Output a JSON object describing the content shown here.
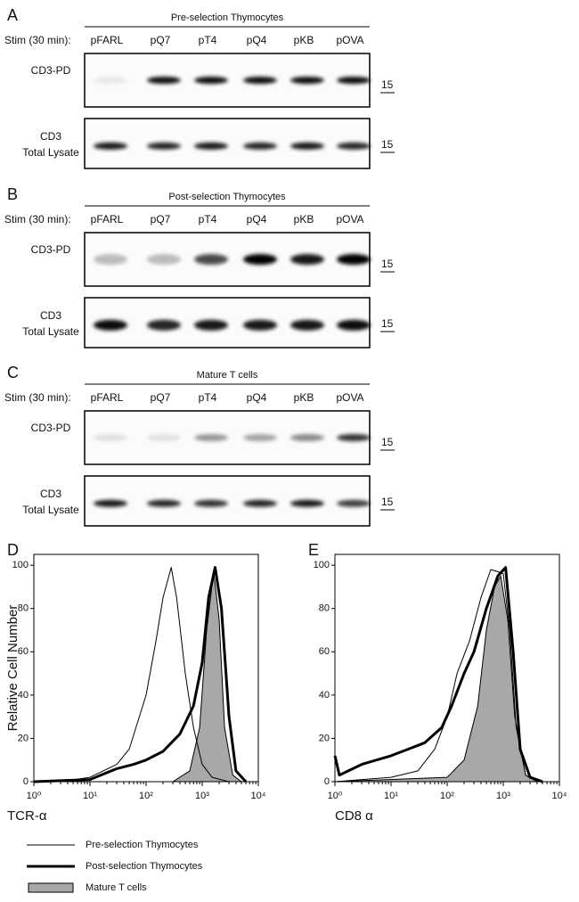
{
  "figure": {
    "panels": [
      {
        "label": "A",
        "title": "Pre-selection Thymocytes",
        "stim_label": "Stim (30 min):",
        "lanes": [
          "pFARL",
          "pQ7",
          "pT4",
          "pQ4",
          "pKB",
          "pOVA"
        ],
        "blots": [
          {
            "label": [
              "CD3-PD"
            ],
            "marker": "15"
          },
          {
            "label": [
              "CD3",
              "Total Lysate"
            ],
            "marker": "15"
          }
        ]
      },
      {
        "label": "B",
        "title": "Post-selection Thymocytes",
        "stim_label": "Stim (30 min):",
        "lanes": [
          "pFARL",
          "pQ7",
          "pT4",
          "pQ4",
          "pKB",
          "pOVA"
        ],
        "blots": [
          {
            "label": [
              "CD3-PD"
            ],
            "marker": "15"
          },
          {
            "label": [
              "CD3",
              "Total Lysate"
            ],
            "marker": "15"
          }
        ]
      },
      {
        "label": "C",
        "title": "Mature T cells",
        "stim_label": "Stim (30 min):",
        "lanes": [
          "pFARL",
          "pQ7",
          "pT4",
          "pQ4",
          "pKB",
          "pOVA"
        ],
        "blots": [
          {
            "label": [
              "CD3-PD"
            ],
            "marker": "15"
          },
          {
            "label": [
              "CD3",
              "Total Lysate"
            ],
            "marker": "15"
          }
        ]
      }
    ]
  },
  "chart_data": [
    {
      "panel": "D",
      "type": "line",
      "ylabel": "Relative Cell Number",
      "xlabel": "TCR-α",
      "xscale": "log",
      "xlim": [
        1,
        10000
      ],
      "ylim": [
        0,
        105
      ],
      "xticks": [
        {
          "value": 1,
          "label": "10⁰"
        },
        {
          "value": 10,
          "label": "10¹"
        },
        {
          "value": 100,
          "label": "10²"
        },
        {
          "value": 1000,
          "label": "10³"
        },
        {
          "value": 10000,
          "label": "10⁴"
        }
      ],
      "yticks": [
        0,
        20,
        40,
        60,
        80,
        100
      ],
      "series": [
        {
          "name": "Pre-selection Thymocytes",
          "style": "line",
          "width": 1,
          "color": "#000000",
          "x": [
            1,
            3,
            10,
            30,
            50,
            100,
            150,
            200,
            280,
            350,
            500,
            700,
            1000,
            1500,
            3000
          ],
          "values": [
            0,
            0,
            2,
            8,
            15,
            40,
            65,
            85,
            99,
            85,
            50,
            25,
            8,
            2,
            0
          ]
        },
        {
          "name": "Post-selection Thymocytes",
          "style": "line",
          "width": 3,
          "color": "#000000",
          "x": [
            1,
            10,
            30,
            60,
            100,
            200,
            400,
            700,
            1000,
            1300,
            1700,
            2200,
            3000,
            4000,
            6000
          ],
          "values": [
            0,
            1,
            6,
            8,
            10,
            14,
            22,
            35,
            55,
            85,
            99,
            80,
            30,
            5,
            0
          ]
        },
        {
          "name": "Mature T cells",
          "style": "area",
          "width": 1,
          "color": "#a8a8a8",
          "x": [
            1,
            300,
            600,
            900,
            1200,
            1600,
            2000,
            2500,
            3500,
            5000
          ],
          "values": [
            0,
            0,
            5,
            25,
            70,
            97,
            75,
            25,
            3,
            0
          ]
        }
      ]
    },
    {
      "panel": "E",
      "type": "line",
      "xlabel": "CD8 α",
      "xscale": "log",
      "xlim": [
        1,
        10000
      ],
      "ylim": [
        0,
        105
      ],
      "xticks": [
        {
          "value": 1,
          "label": "10⁰"
        },
        {
          "value": 10,
          "label": "10¹"
        },
        {
          "value": 100,
          "label": "10²"
        },
        {
          "value": 1000,
          "label": "10³"
        },
        {
          "value": 10000,
          "label": "10⁴"
        }
      ],
      "yticks": [
        0,
        20,
        40,
        60,
        80,
        100
      ],
      "series": [
        {
          "style": "line",
          "width": 1,
          "color": "#000000",
          "x": [
            1,
            10,
            30,
            60,
            100,
            150,
            250,
            400,
            600,
            800,
            1000,
            1300,
            1700,
            2500,
            4000
          ],
          "values": [
            0,
            2,
            5,
            15,
            30,
            50,
            65,
            85,
            98,
            97,
            96,
            70,
            25,
            3,
            0
          ]
        },
        {
          "style": "line",
          "width": 3,
          "color": "#000000",
          "x": [
            1,
            1.2,
            3,
            10,
            20,
            40,
            80,
            120,
            200,
            300,
            500,
            800,
            1100,
            1500,
            2000,
            3000,
            5000
          ],
          "values": [
            12,
            3,
            8,
            12,
            15,
            18,
            25,
            35,
            50,
            60,
            80,
            95,
            99,
            60,
            15,
            2,
            0
          ]
        },
        {
          "style": "area",
          "width": 1,
          "color": "#a8a8a8",
          "x": [
            1,
            100,
            200,
            350,
            500,
            700,
            900,
            1200,
            1600,
            2500,
            4000
          ],
          "values": [
            0,
            2,
            10,
            35,
            70,
            90,
            95,
            75,
            30,
            3,
            0
          ]
        }
      ]
    }
  ]
}
